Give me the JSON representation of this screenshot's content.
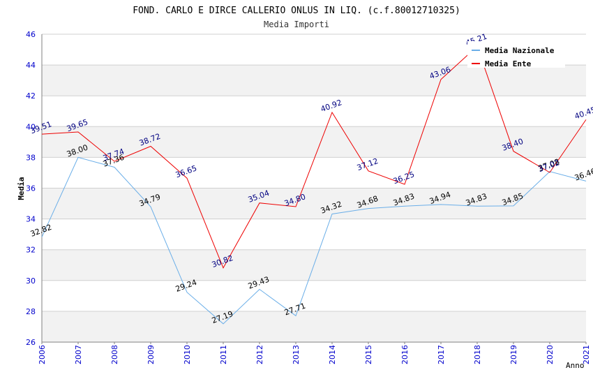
{
  "chart_data": {
    "type": "line",
    "title": "FOND. CARLO E DIRCE CALLERIO ONLUS IN LIQ. (c.f.80012710325)",
    "subtitle": "Media Importi",
    "xlabel": "Anno",
    "ylabel": "Media",
    "ylim": [
      26,
      46
    ],
    "yticks": [
      26,
      28,
      30,
      32,
      34,
      36,
      38,
      40,
      42,
      44,
      46
    ],
    "grid": true,
    "legend_position": "top-right",
    "x": [
      "2006",
      "2007",
      "2008",
      "2009",
      "2010",
      "2011",
      "2012",
      "2013",
      "2014",
      "2015",
      "2016",
      "2017",
      "2018",
      "2019",
      "2020",
      "2021"
    ],
    "series": [
      {
        "name": "Media Nazionale",
        "color": "#6aaee8",
        "label_color": "#000000",
        "values": [
          32.82,
          38.0,
          37.36,
          34.79,
          29.24,
          27.19,
          29.43,
          27.71,
          34.32,
          34.68,
          34.83,
          34.94,
          34.83,
          34.85,
          37.08,
          36.46
        ],
        "labels": [
          "32.82",
          "38.00",
          "37.36",
          "34.79",
          "29.24",
          "27.19",
          "29.43",
          "27.71",
          "34.32",
          "34.68",
          "34.83",
          "34.94",
          "34.83",
          "34.85",
          "37.08",
          "36.46"
        ]
      },
      {
        "name": "Media Ente",
        "color": "#ee0000",
        "label_color": "#000080",
        "values": [
          39.51,
          39.65,
          37.74,
          38.72,
          36.65,
          30.82,
          35.04,
          34.8,
          40.92,
          37.12,
          36.25,
          43.06,
          45.21,
          38.4,
          37.02,
          40.45
        ],
        "labels": [
          "39.51",
          "39.65",
          "37.74",
          "38.72",
          "36.65",
          "30.82",
          "35.04",
          "34.80",
          "40.92",
          "37.12",
          "36.25",
          "43.06",
          "45.21",
          "38.40",
          "37.02",
          "40.45"
        ]
      }
    ]
  },
  "colors": {
    "tick_label": "#0000cc",
    "band": "#f2f2f2",
    "gridline": "#d0d0d0",
    "axis": "#808080"
  }
}
